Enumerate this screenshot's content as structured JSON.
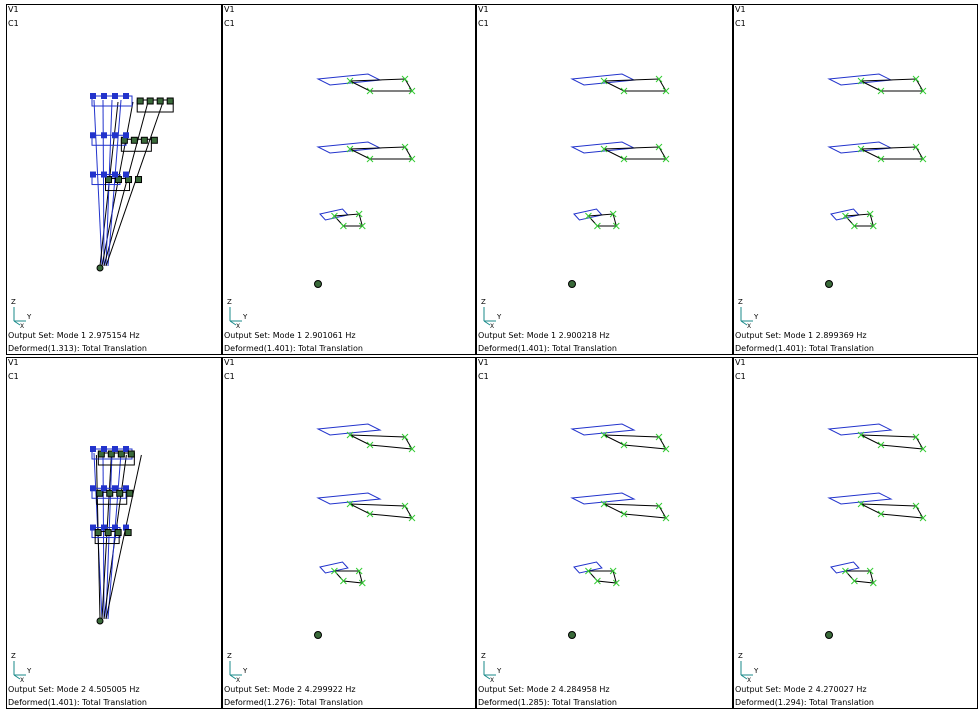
{
  "panels": [
    {
      "view": "V1",
      "case": "C1",
      "triad": [
        "Z",
        "Y",
        "X"
      ],
      "output_set": "Output Set: Mode 1 2.975154 Hz",
      "deformed": "Deformed(1.313): Total Translation"
    },
    {
      "view": "V1",
      "case": "C1",
      "triad": [
        "Z",
        "Y",
        "X"
      ],
      "output_set": "Output Set: Mode 1 2.901061 Hz",
      "deformed": "Deformed(1.401): Total Translation"
    },
    {
      "view": "V1",
      "case": "C1",
      "triad": [
        "Z",
        "Y",
        "X"
      ],
      "output_set": "Output Set: Mode 1 2.900218 Hz",
      "deformed": "Deformed(1.401): Total Translation"
    },
    {
      "view": "V1",
      "case": "C1",
      "triad": [
        "Z",
        "Y",
        "X"
      ],
      "output_set": "Output Set: Mode 1 2.899369 Hz",
      "deformed": "Deformed(1.401): Total Translation"
    },
    {
      "view": "V1",
      "case": "C1",
      "triad": [
        "Z",
        "Y",
        "X"
      ],
      "output_set": "Output Set: Mode 2 4.505005 Hz",
      "deformed": "Deformed(1.401): Total Translation"
    },
    {
      "view": "V1",
      "case": "C1",
      "triad": [
        "Z",
        "Y",
        "X"
      ],
      "output_set": "Output Set: Mode 2 4.299922 Hz",
      "deformed": "Deformed(1.276): Total Translation"
    },
    {
      "view": "V1",
      "case": "C1",
      "triad": [
        "Z",
        "Y",
        "X"
      ],
      "output_set": "Output Set: Mode 2 4.284958 Hz",
      "deformed": "Deformed(1.285): Total Translation"
    },
    {
      "view": "V1",
      "case": "C1",
      "triad": [
        "Z",
        "Y",
        "X"
      ],
      "output_set": "Output Set: Mode 2 4.270027 Hz",
      "deformed": "Deformed(1.294): Total Translation"
    }
  ]
}
